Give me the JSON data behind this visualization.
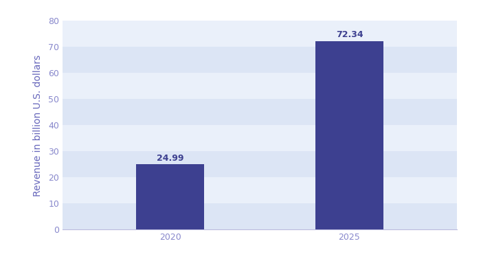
{
  "categories": [
    "2020",
    "2025"
  ],
  "values": [
    24.99,
    72.34
  ],
  "bar_color": "#3d4090",
  "bar_label_color": "#3d4090",
  "ylabel": "Revenue in billion U.S. dollars",
  "ylabel_color": "#6666bb",
  "tick_color": "#8888cc",
  "axis_color": "#bbbbdd",
  "ylim": [
    0,
    80
  ],
  "yticks": [
    0,
    10,
    20,
    30,
    40,
    50,
    60,
    70,
    80
  ],
  "background_color": "#ffffff",
  "stripe_colors": [
    "#dce5f5",
    "#eaf0fa"
  ],
  "bar_width": 0.38,
  "label_fontsize": 9,
  "tick_fontsize": 9,
  "ylabel_fontsize": 10,
  "x_positions": [
    0,
    1
  ]
}
